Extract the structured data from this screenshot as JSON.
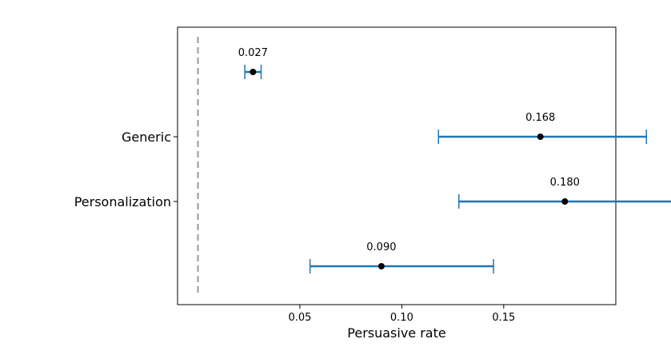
{
  "chart_data": {
    "type": "scatter",
    "title": "",
    "xlabel": "Persuasive rate",
    "ylabel": "",
    "xlim": [
      -0.01,
      0.205
    ],
    "xticks": [
      0.05,
      0.1,
      0.15
    ],
    "xtick_labels": [
      "0.05",
      "0.10",
      "0.15"
    ],
    "reference_line": {
      "x": 0.0,
      "style": "dashed",
      "color": "#999999"
    },
    "grid": false,
    "legend": "none",
    "points": [
      {
        "label": "",
        "value": 0.027,
        "ci_low": 0.023,
        "ci_high": 0.031,
        "value_label": "0.027"
      },
      {
        "label": "Generic",
        "value": 0.168,
        "ci_low": 0.118,
        "ci_high": 0.22,
        "value_label": "0.168"
      },
      {
        "label": "Personalization",
        "value": 0.18,
        "ci_low": 0.128,
        "ci_high": 0.233,
        "value_label": "0.180"
      },
      {
        "label": "",
        "value": 0.09,
        "ci_low": 0.055,
        "ci_high": 0.145,
        "value_label": "0.090"
      }
    ],
    "colors": {
      "errorbar": "#1f77b4",
      "point": "#000000",
      "frame": "#000000"
    }
  }
}
